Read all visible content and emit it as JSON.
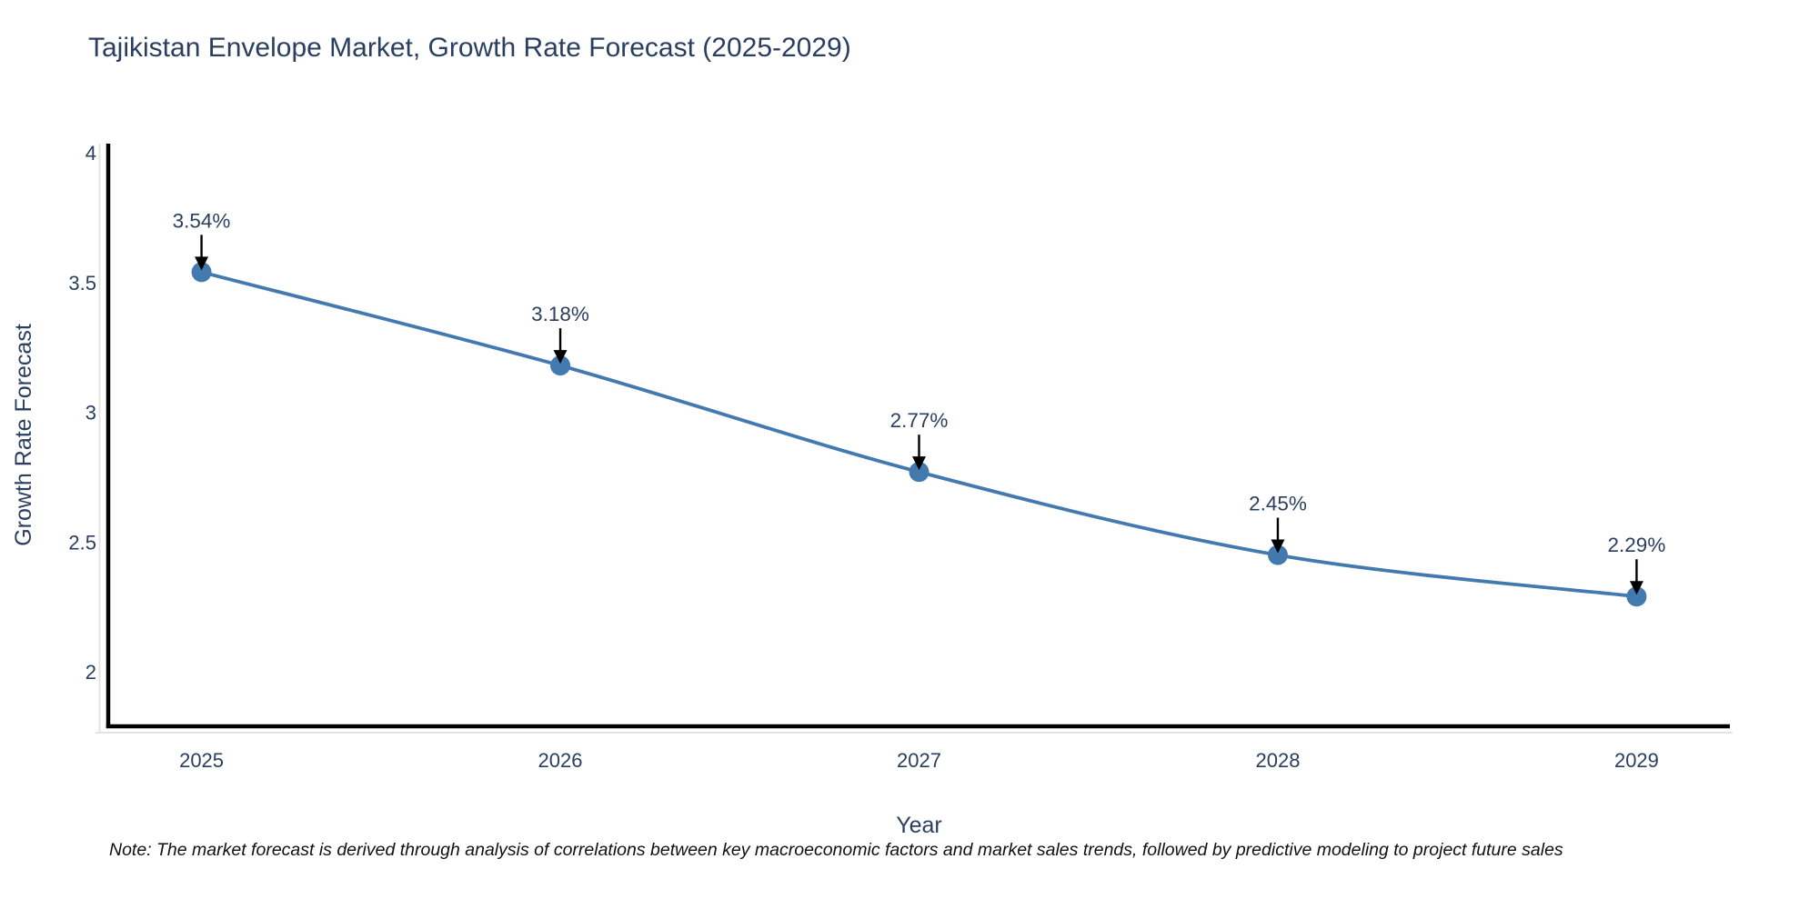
{
  "title": "Tajikistan Envelope Market, Growth Rate Forecast (2025-2029)",
  "note": "Note: The market forecast is derived through analysis of correlations between key macroeconomic factors and market sales trends, followed by predictive modeling to project future sales",
  "chart_data": {
    "type": "line",
    "title": "Tajikistan Envelope Market, Growth Rate Forecast (2025-2029)",
    "x": [
      2025,
      2026,
      2027,
      2028,
      2029
    ],
    "series": [
      {
        "name": "Growth Rate Forecast",
        "values": [
          3.54,
          3.18,
          2.77,
          2.45,
          2.29
        ]
      }
    ],
    "point_labels": [
      "3.54%",
      "3.18%",
      "2.77%",
      "2.45%",
      "2.29%"
    ],
    "xlabel": "Year",
    "ylabel": "Growth Rate Forecast",
    "xtick_labels": [
      "2025",
      "2026",
      "2027",
      "2028",
      "2029"
    ],
    "ytick_values": [
      2,
      2.5,
      3,
      3.5,
      4
    ],
    "ytick_labels": [
      "2",
      "2.5",
      "3",
      "3.5",
      "4"
    ],
    "xlim": [
      2024.74,
      2029.26
    ],
    "ylim": [
      1.79,
      4.035
    ],
    "grid": false,
    "legend": "none",
    "line_shape": "spline",
    "colors": {
      "line": "#4279af",
      "marker": "#4279af",
      "axis_line": "#000000",
      "font": "#2a3f5f",
      "annotation_arrow": "#000000",
      "background": "#ffffff"
    }
  }
}
